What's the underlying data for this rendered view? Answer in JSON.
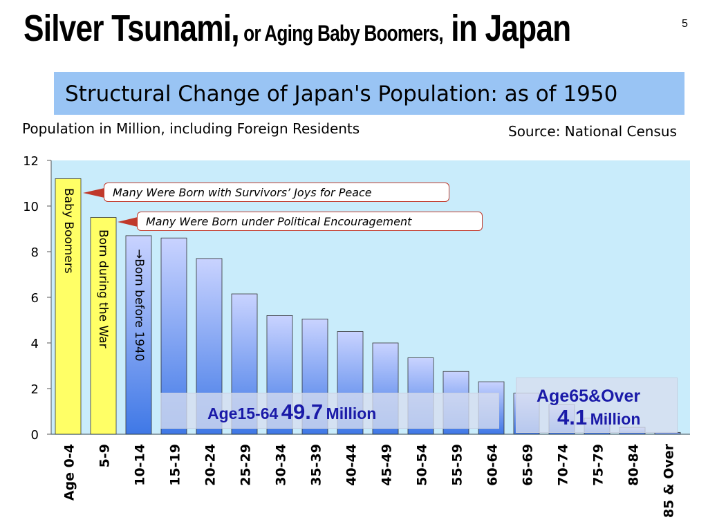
{
  "page": {
    "title_part1": "Silver Tsunami,",
    "title_part2": " or Aging Baby Boomers,",
    "title_part3": " in Japan",
    "page_number": "5",
    "banner": "Structural Change of Japan's Population: as of 1950",
    "subtitle": "Population in Million, including Foreign Residents",
    "source": "Source: National Census"
  },
  "annotations": {
    "bar_label_0": "Baby Boomers",
    "bar_label_1": "Born during the War",
    "bar_label_2": "→Born before 1940",
    "callout_1": "Many Were Born with Survivors’ Joys for Peace",
    "callout_2": "Many Were Born under Political Encouragement",
    "working_age_label": "Age15-64",
    "working_age_value": "49.7",
    "working_age_unit": "Million",
    "elderly_label": "Age65&Over",
    "elderly_value": "4.1",
    "elderly_unit": "Million"
  },
  "colors": {
    "plot_bg": "#c9ecfb",
    "highlight_bar": "#ffff66",
    "bar_light": "#c9d3ff",
    "bar_dark": "#3f78e6",
    "band_text": "#1a1aa8",
    "callout_border": "#c0392b",
    "banner_bg": "#99c4f4"
  },
  "chart_data": {
    "type": "bar",
    "categories": [
      "Age 0-4",
      "5-9",
      "10-14",
      "15-19",
      "20-24",
      "25-29",
      "30-34",
      "35-39",
      "40-44",
      "45-49",
      "50-54",
      "55-59",
      "60-64",
      "65-69",
      "70-74",
      "75-79",
      "80-84",
      "85 & Over"
    ],
    "values": [
      11.2,
      9.5,
      8.7,
      8.6,
      7.7,
      6.15,
      5.2,
      5.05,
      4.5,
      4.0,
      3.35,
      2.75,
      2.3,
      1.8,
      1.3,
      0.7,
      0.3,
      0.08
    ],
    "highlighted": [
      0,
      1
    ],
    "yticks": [
      0,
      2,
      4,
      6,
      8,
      10,
      12
    ],
    "ylim": [
      0,
      12
    ],
    "title": "",
    "xlabel": "",
    "ylabel": ""
  }
}
